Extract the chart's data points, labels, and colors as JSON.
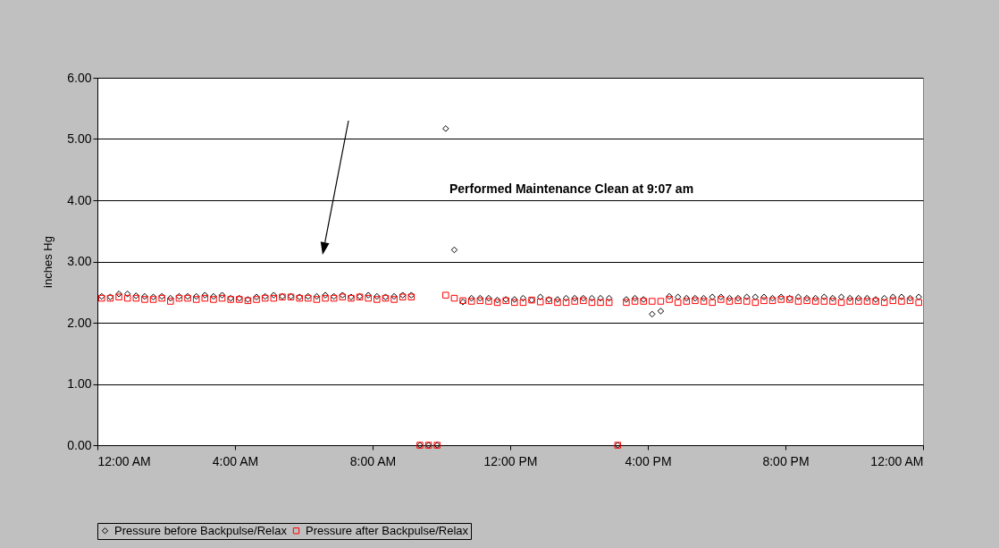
{
  "chart_data": {
    "type": "scatter",
    "ylabel": "inches Hg",
    "x": [
      0.125,
      0.375,
      0.625,
      0.875,
      1.125,
      1.375,
      1.625,
      1.875,
      2.125,
      2.375,
      2.625,
      2.875,
      3.125,
      3.375,
      3.625,
      3.875,
      4.125,
      4.375,
      4.625,
      4.875,
      5.125,
      5.375,
      5.625,
      5.875,
      6.125,
      6.375,
      6.625,
      6.875,
      7.125,
      7.375,
      7.625,
      7.875,
      8.125,
      8.375,
      8.625,
      8.875,
      9.125,
      9.375,
      9.625,
      9.875,
      10.125,
      10.375,
      10.625,
      10.875,
      11.125,
      11.375,
      11.625,
      11.875,
      12.125,
      12.375,
      12.625,
      12.875,
      13.125,
      13.375,
      13.625,
      13.875,
      14.125,
      14.375,
      14.625,
      14.875,
      15.125,
      15.375,
      15.625,
      15.875,
      16.125,
      16.375,
      16.625,
      16.875,
      17.125,
      17.375,
      17.625,
      17.875,
      18.125,
      18.375,
      18.625,
      18.875,
      19.125,
      19.375,
      19.625,
      19.875,
      20.125,
      20.375,
      20.625,
      20.875,
      21.125,
      21.375,
      21.625,
      21.875,
      22.125,
      22.375,
      22.625,
      22.875,
      23.125,
      23.375,
      23.625,
      23.875
    ],
    "series": [
      {
        "name": "Pressure before Backpulse/Relax",
        "color": "#000000",
        "marker": "diamond",
        "values": [
          2.43,
          2.42,
          2.47,
          2.47,
          2.44,
          2.43,
          2.42,
          2.43,
          2.4,
          2.43,
          2.43,
          2.43,
          2.45,
          2.43,
          2.45,
          2.4,
          2.4,
          2.38,
          2.42,
          2.43,
          2.45,
          2.43,
          2.43,
          2.42,
          2.43,
          2.43,
          2.45,
          2.43,
          2.45,
          2.42,
          2.43,
          2.45,
          2.43,
          2.42,
          2.43,
          2.45,
          2.45,
          0,
          0,
          0,
          5.17,
          3.19,
          2.34,
          2.4,
          2.4,
          2.4,
          2.37,
          2.38,
          2.38,
          2.4,
          2.37,
          2.42,
          2.38,
          2.38,
          2.4,
          2.4,
          2.4,
          2.4,
          2.4,
          2.4,
          0,
          2.38,
          2.4,
          2.38,
          2.14,
          2.19,
          2.43,
          2.42,
          2.4,
          2.4,
          2.4,
          2.42,
          2.42,
          2.4,
          2.4,
          2.42,
          2.42,
          2.42,
          2.4,
          2.42,
          2.4,
          2.42,
          2.4,
          2.4,
          2.42,
          2.4,
          2.42,
          2.4,
          2.4,
          2.4,
          2.38,
          2.4,
          2.42,
          2.42,
          2.4,
          2.42
        ]
      },
      {
        "name": "Pressure after Backpulse/Relax",
        "color": "#ff0000",
        "marker": "square",
        "values": [
          2.4,
          2.4,
          2.42,
          2.4,
          2.4,
          2.38,
          2.38,
          2.4,
          2.35,
          2.4,
          2.4,
          2.38,
          2.4,
          2.38,
          2.4,
          2.38,
          2.38,
          2.36,
          2.38,
          2.4,
          2.4,
          2.42,
          2.42,
          2.4,
          2.4,
          2.38,
          2.4,
          2.4,
          2.42,
          2.4,
          2.42,
          2.4,
          2.38,
          2.4,
          2.38,
          2.42,
          2.42,
          0,
          0,
          0,
          2.45,
          2.4,
          2.36,
          2.35,
          2.36,
          2.35,
          2.33,
          2.36,
          2.33,
          2.33,
          2.37,
          2.34,
          2.36,
          2.33,
          2.33,
          2.35,
          2.36,
          2.33,
          2.33,
          2.33,
          0,
          2.33,
          2.35,
          2.35,
          2.35,
          2.35,
          2.38,
          2.33,
          2.35,
          2.36,
          2.35,
          2.33,
          2.38,
          2.35,
          2.36,
          2.35,
          2.33,
          2.36,
          2.36,
          2.38,
          2.38,
          2.35,
          2.36,
          2.35,
          2.35,
          2.35,
          2.33,
          2.35,
          2.35,
          2.35,
          2.35,
          2.33,
          2.36,
          2.35,
          2.36,
          2.33
        ]
      }
    ],
    "xlim": [
      0,
      24
    ],
    "xticks": [
      {
        "value": 0,
        "label": "12:00 AM"
      },
      {
        "value": 4,
        "label": "4:00 AM"
      },
      {
        "value": 8,
        "label": "8:00 AM"
      },
      {
        "value": 12,
        "label": "12:00 PM"
      },
      {
        "value": 16,
        "label": "4:00 PM"
      },
      {
        "value": 20,
        "label": "8:00 PM"
      },
      {
        "value": 24,
        "label": "12:00 AM"
      }
    ],
    "ylim": [
      0,
      6
    ],
    "yticks": [
      {
        "value": 0,
        "label": "0.00"
      },
      {
        "value": 1,
        "label": "1.00"
      },
      {
        "value": 2,
        "label": "2.00"
      },
      {
        "value": 3,
        "label": "3.00"
      },
      {
        "value": 4,
        "label": "4.00"
      },
      {
        "value": 5,
        "label": "5.00"
      },
      {
        "value": 6,
        "label": "6.00"
      }
    ],
    "grid": "y",
    "legend": "bottom",
    "annotations": [
      "Performed Maintenance Clean at 9:07 am"
    ]
  }
}
